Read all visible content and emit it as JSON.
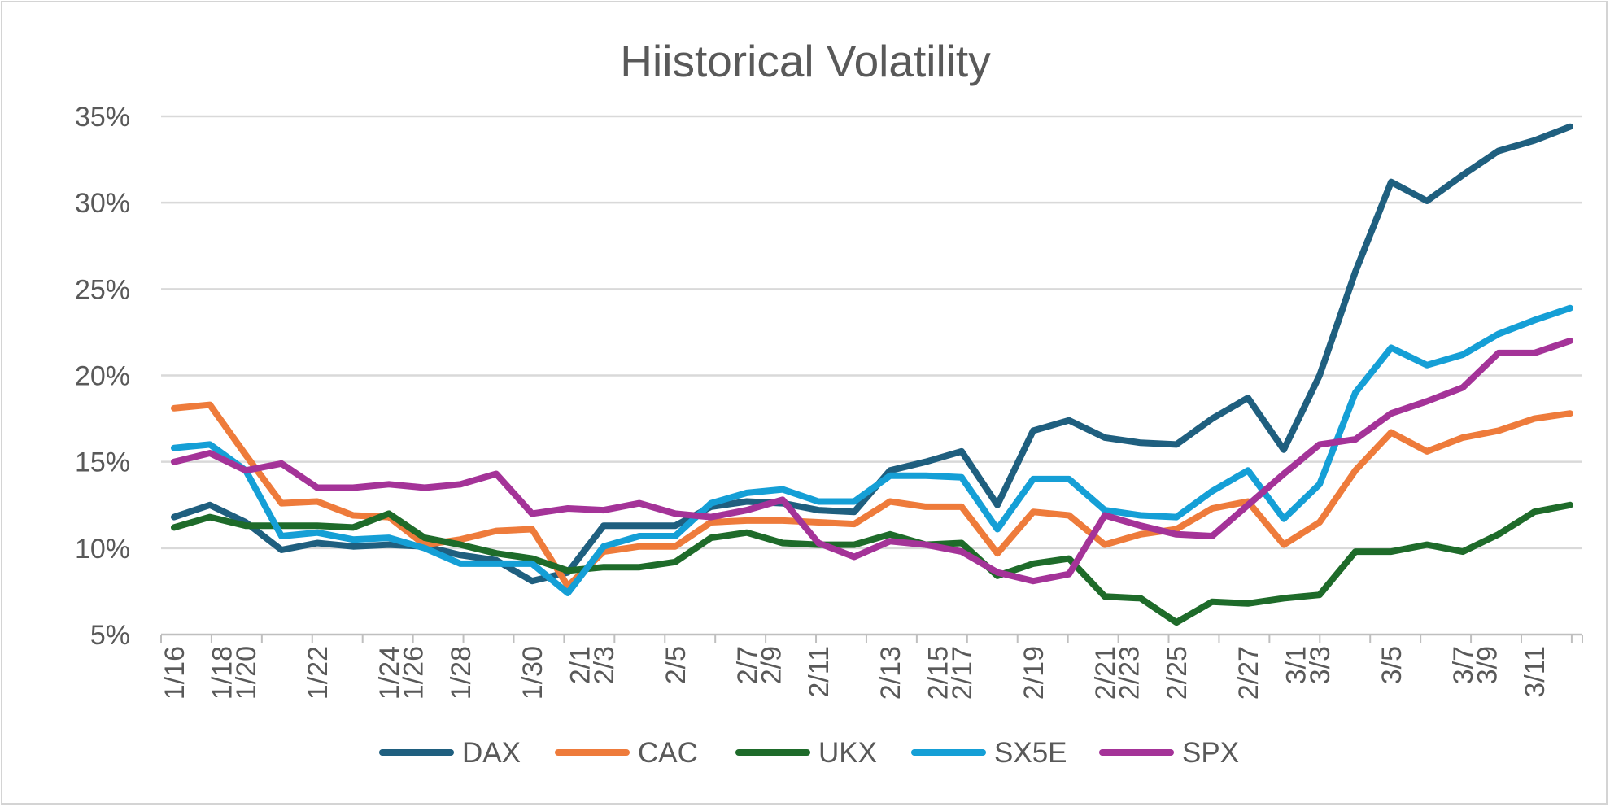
{
  "chart_data": {
    "type": "line",
    "title": "Hiistorical Volatility",
    "xlabel": "",
    "ylabel": "",
    "ylim": [
      0.05,
      0.35
    ],
    "yticks": [
      0.05,
      0.1,
      0.15,
      0.2,
      0.25,
      0.3,
      0.35
    ],
    "ytick_labels": [
      "5%",
      "10%",
      "15%",
      "20%",
      "25%",
      "30%",
      "35%"
    ],
    "grid": true,
    "legend_position": "bottom",
    "x_label_rotation": -90,
    "x": [
      "1/16",
      "1/17",
      "1/20",
      "1/21",
      "1/22",
      "1/23",
      "1/24",
      "1/27",
      "1/28",
      "1/29",
      "1/30",
      "1/31",
      "2/3",
      "2/4",
      "2/5",
      "2/6",
      "2/7",
      "2/10",
      "2/11",
      "2/12",
      "2/13",
      "2/14",
      "2/17",
      "2/18",
      "2/19",
      "2/20",
      "2/21",
      "2/24",
      "2/25",
      "2/26",
      "2/27",
      "2/28",
      "3/3",
      "3/4",
      "3/5",
      "3/6",
      "3/7",
      "3/10",
      "3/11",
      "3/12"
    ],
    "tick_labels": [
      "1/16",
      "1/18",
      "1/20",
      "1/22",
      "1/24",
      "1/26",
      "1/28",
      "1/30",
      "2/1",
      "2/3",
      "2/5",
      "2/7",
      "2/9",
      "2/11",
      "2/13",
      "2/15",
      "2/17",
      "2/19",
      "2/21",
      "2/23",
      "2/25",
      "2/27",
      "3/1",
      "3/3",
      "3/5",
      "3/7",
      "3/9",
      "3/11"
    ],
    "series": [
      {
        "name": "DAX",
        "color": "#1f5f7f",
        "values": [
          0.118,
          0.125,
          0.115,
          0.099,
          0.103,
          0.101,
          0.102,
          0.101,
          0.096,
          0.093,
          0.081,
          0.086,
          0.113,
          0.113,
          0.113,
          0.124,
          0.127,
          0.126,
          0.122,
          0.121,
          0.145,
          0.15,
          0.156,
          0.125,
          0.168,
          0.174,
          0.164,
          0.161,
          0.16,
          0.175,
          0.187,
          0.157,
          0.2,
          0.26,
          0.312,
          0.301,
          0.316,
          0.33,
          0.336,
          0.344
        ]
      },
      {
        "name": "CAC",
        "color": "#ee7b3b",
        "values": [
          0.181,
          0.183,
          0.154,
          0.126,
          0.127,
          0.119,
          0.118,
          0.102,
          0.105,
          0.11,
          0.111,
          0.078,
          0.098,
          0.101,
          0.101,
          0.115,
          0.116,
          0.116,
          0.115,
          0.114,
          0.127,
          0.124,
          0.124,
          0.097,
          0.121,
          0.119,
          0.102,
          0.108,
          0.111,
          0.123,
          0.127,
          0.102,
          0.115,
          0.145,
          0.167,
          0.156,
          0.164,
          0.168,
          0.175,
          0.178
        ]
      },
      {
        "name": "UKX",
        "color": "#1e6b2a",
        "values": [
          0.112,
          0.118,
          0.113,
          0.113,
          0.113,
          0.112,
          0.12,
          0.106,
          0.102,
          0.097,
          0.094,
          0.087,
          0.089,
          0.089,
          0.092,
          0.106,
          0.109,
          0.103,
          0.102,
          0.102,
          0.108,
          0.102,
          0.103,
          0.084,
          0.091,
          0.094,
          0.072,
          0.071,
          0.057,
          0.069,
          0.068,
          0.071,
          0.073,
          0.098,
          0.098,
          0.102,
          0.098,
          0.108,
          0.121,
          0.125
        ]
      },
      {
        "name": "SX5E",
        "color": "#159fd6",
        "values": [
          0.158,
          0.16,
          0.145,
          0.107,
          0.109,
          0.105,
          0.106,
          0.1,
          0.091,
          0.091,
          0.091,
          0.074,
          0.101,
          0.107,
          0.107,
          0.126,
          0.132,
          0.134,
          0.127,
          0.127,
          0.142,
          0.142,
          0.141,
          0.111,
          0.14,
          0.14,
          0.122,
          0.119,
          0.118,
          0.133,
          0.145,
          0.117,
          0.137,
          0.19,
          0.216,
          0.206,
          0.212,
          0.224,
          0.232,
          0.239
        ]
      },
      {
        "name": "SPX",
        "color": "#a43398",
        "values": [
          0.15,
          0.155,
          0.145,
          0.149,
          0.135,
          0.135,
          0.137,
          0.135,
          0.137,
          0.143,
          0.12,
          0.123,
          0.122,
          0.126,
          0.12,
          0.118,
          0.122,
          0.128,
          0.103,
          0.095,
          0.104,
          0.102,
          0.098,
          0.086,
          0.081,
          0.085,
          0.119,
          0.113,
          0.108,
          0.107,
          0.125,
          0.143,
          0.16,
          0.163,
          0.178,
          0.185,
          0.193,
          0.213,
          0.213,
          0.22
        ]
      }
    ]
  }
}
